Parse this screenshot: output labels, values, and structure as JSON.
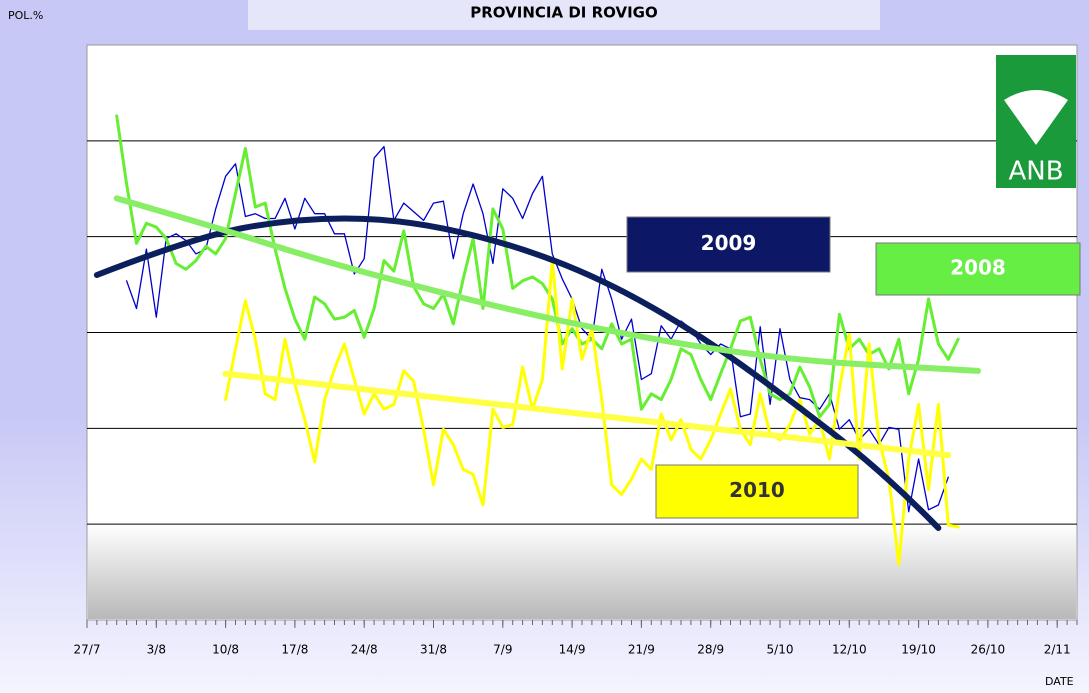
{
  "chart_data": {
    "type": "line",
    "title": "PROVINCIA DI ROVIGO",
    "y_label": "POL.%",
    "x_label": "DATE",
    "logo_text": "ANB",
    "xlim": [
      0,
      100
    ],
    "ylim": [
      0,
      6
    ],
    "yticks": [
      1,
      2,
      3,
      4,
      5
    ],
    "grid": true,
    "xticks": [
      {
        "value": 0,
        "label": "27/7"
      },
      {
        "value": 7,
        "label": "3/8"
      },
      {
        "value": 14,
        "label": "10/8"
      },
      {
        "value": 21,
        "label": "17/8"
      },
      {
        "value": 28,
        "label": "24/8"
      },
      {
        "value": 35,
        "label": "31/8"
      },
      {
        "value": 42,
        "label": "7/9"
      },
      {
        "value": 49,
        "label": "14/9"
      },
      {
        "value": 56,
        "label": "21/9"
      },
      {
        "value": 63,
        "label": "28/9"
      },
      {
        "value": 70,
        "label": "5/10"
      },
      {
        "value": 77,
        "label": "12/10"
      },
      {
        "value": 84,
        "label": "19/10"
      },
      {
        "value": 91,
        "label": "26/10"
      },
      {
        "value": 98,
        "label": "2/11"
      }
    ],
    "series": [
      {
        "name": "2009",
        "color": "#0000cc",
        "box_color": "#0c1866",
        "text_color": "#ffffff",
        "x": [
          4,
          5,
          6,
          7,
          8,
          9,
          10,
          11,
          12,
          13,
          14,
          15,
          16,
          17,
          18,
          19,
          20,
          21,
          22,
          23,
          24,
          25,
          26,
          27,
          28,
          29,
          30,
          31,
          32,
          33,
          34,
          35,
          36,
          37,
          38,
          39,
          40,
          41,
          42,
          43,
          44,
          45,
          46,
          47,
          48,
          49,
          50,
          51,
          52,
          53,
          54,
          55,
          56,
          57,
          58,
          59,
          60,
          61,
          62,
          63,
          64,
          65,
          66,
          67,
          68,
          69,
          70,
          71,
          72,
          73,
          74,
          75,
          76,
          77,
          78,
          79,
          80,
          81,
          82,
          83,
          84,
          85,
          86,
          87
        ],
        "values": [
          3.54,
          3.25,
          3.87,
          3.16,
          3.98,
          4.03,
          3.96,
          3.82,
          3.87,
          4.29,
          4.63,
          4.76,
          4.21,
          4.24,
          4.19,
          4.19,
          4.4,
          4.08,
          4.4,
          4.24,
          4.24,
          4.03,
          4.03,
          3.61,
          3.77,
          4.82,
          4.94,
          4.17,
          4.35,
          4.26,
          4.17,
          4.35,
          4.37,
          3.77,
          4.24,
          4.55,
          4.24,
          3.72,
          4.5,
          4.4,
          4.19,
          4.45,
          4.63,
          3.82,
          3.56,
          3.35,
          3.04,
          2.93,
          3.66,
          3.35,
          2.93,
          3.14,
          2.51,
          2.57,
          3.07,
          2.93,
          3.12,
          3.04,
          2.88,
          2.77,
          2.88,
          2.83,
          2.12,
          2.15,
          3.06,
          2.25,
          3.04,
          2.51,
          2.32,
          2.3,
          2.2,
          2.36,
          1.99,
          2.09,
          1.88,
          1.99,
          1.83,
          2.01,
          1.99,
          1.13,
          1.68,
          1.15,
          1.2,
          1.49
        ]
      },
      {
        "name": "2008",
        "color": "#66ee33",
        "box_color": "#66ee44",
        "text_color": "#ffffff",
        "x": [
          3,
          4,
          5,
          6,
          7,
          8,
          9,
          10,
          11,
          12,
          13,
          14,
          15,
          16,
          17,
          18,
          19,
          20,
          21,
          22,
          23,
          24,
          25,
          26,
          27,
          28,
          29,
          30,
          31,
          32,
          33,
          34,
          35,
          36,
          37,
          38,
          39,
          40,
          41,
          42,
          43,
          44,
          45,
          46,
          47,
          48,
          49,
          50,
          51,
          52,
          53,
          54,
          55,
          56,
          57,
          58,
          59,
          60,
          61,
          62,
          63,
          64,
          65,
          66,
          67,
          68,
          69,
          70,
          71,
          72,
          73,
          74,
          75,
          76,
          77,
          78,
          79,
          80,
          81,
          82,
          83,
          84,
          85,
          86,
          87,
          88
        ],
        "values": [
          5.26,
          4.55,
          3.93,
          4.14,
          4.1,
          3.98,
          3.72,
          3.66,
          3.75,
          3.9,
          3.82,
          3.98,
          4.45,
          4.92,
          4.31,
          4.35,
          3.87,
          3.46,
          3.14,
          2.93,
          3.37,
          3.3,
          3.14,
          3.16,
          3.23,
          2.95,
          3.25,
          3.75,
          3.64,
          4.06,
          3.48,
          3.3,
          3.25,
          3.4,
          3.09,
          3.56,
          3.98,
          3.25,
          4.29,
          4.08,
          3.46,
          3.54,
          3.58,
          3.51,
          3.35,
          2.88,
          3.04,
          2.88,
          2.93,
          2.83,
          3.09,
          2.88,
          2.93,
          2.2,
          2.36,
          2.3,
          2.51,
          2.83,
          2.77,
          2.51,
          2.3,
          2.57,
          2.83,
          3.12,
          3.16,
          2.72,
          2.36,
          2.3,
          2.36,
          2.64,
          2.43,
          2.12,
          2.25,
          3.19,
          2.83,
          2.93,
          2.77,
          2.83,
          2.62,
          2.93,
          2.36,
          2.72,
          3.35,
          2.88,
          2.72,
          2.93
        ]
      },
      {
        "name": "2010",
        "color": "#ffff00",
        "box_color": "#ffff00",
        "text_color": "#333333",
        "x": [
          14,
          15,
          16,
          17,
          18,
          19,
          20,
          21,
          22,
          23,
          24,
          25,
          26,
          27,
          28,
          29,
          30,
          31,
          32,
          33,
          34,
          35,
          36,
          37,
          38,
          39,
          40,
          41,
          42,
          43,
          44,
          45,
          46,
          47,
          48,
          49,
          50,
          51,
          52,
          53,
          54,
          55,
          56,
          57,
          58,
          59,
          60,
          61,
          62,
          63,
          64,
          65,
          66,
          67,
          68,
          69,
          70,
          71,
          72,
          73,
          74,
          75,
          76,
          77,
          78,
          79,
          80,
          81,
          82,
          83,
          84,
          85,
          86,
          87,
          88
        ],
        "values": [
          2.3,
          2.83,
          3.33,
          2.93,
          2.36,
          2.3,
          2.93,
          2.46,
          2.09,
          1.65,
          2.3,
          2.62,
          2.88,
          2.51,
          2.15,
          2.36,
          2.2,
          2.25,
          2.6,
          2.49,
          1.99,
          1.41,
          1.99,
          1.83,
          1.57,
          1.52,
          1.2,
          2.2,
          2.01,
          2.04,
          2.64,
          2.2,
          2.51,
          3.75,
          2.62,
          3.35,
          2.72,
          3.04,
          2.3,
          1.41,
          1.31,
          1.47,
          1.68,
          1.57,
          2.15,
          1.88,
          2.09,
          1.78,
          1.68,
          1.88,
          2.15,
          2.41,
          1.99,
          1.83,
          2.36,
          1.94,
          1.88,
          2.04,
          2.3,
          1.94,
          2.09,
          1.68,
          2.41,
          2.98,
          1.68,
          2.88,
          1.88,
          1.47,
          0.58,
          1.68,
          2.25,
          1.36,
          2.25,
          0.99,
          0.97
        ]
      }
    ],
    "trends": [
      {
        "color": "#0b1f5c",
        "x": [
          1,
          11,
          21,
          31,
          41,
          51,
          61,
          71,
          81,
          86
        ],
        "values": [
          3.6,
          4.0,
          4.19,
          4.19,
          3.98,
          3.61,
          3.04,
          2.3,
          1.49,
          0.96
        ]
      },
      {
        "color": "#88ee66",
        "x": [
          3,
          13,
          23,
          33,
          43,
          53,
          63,
          73,
          83,
          90
        ],
        "values": [
          4.4,
          4.1,
          3.77,
          3.49,
          3.23,
          3.01,
          2.83,
          2.7,
          2.64,
          2.6
        ]
      },
      {
        "color": "#ffff44",
        "x": [
          14,
          87
        ],
        "values": [
          2.57,
          1.72
        ]
      }
    ]
  }
}
